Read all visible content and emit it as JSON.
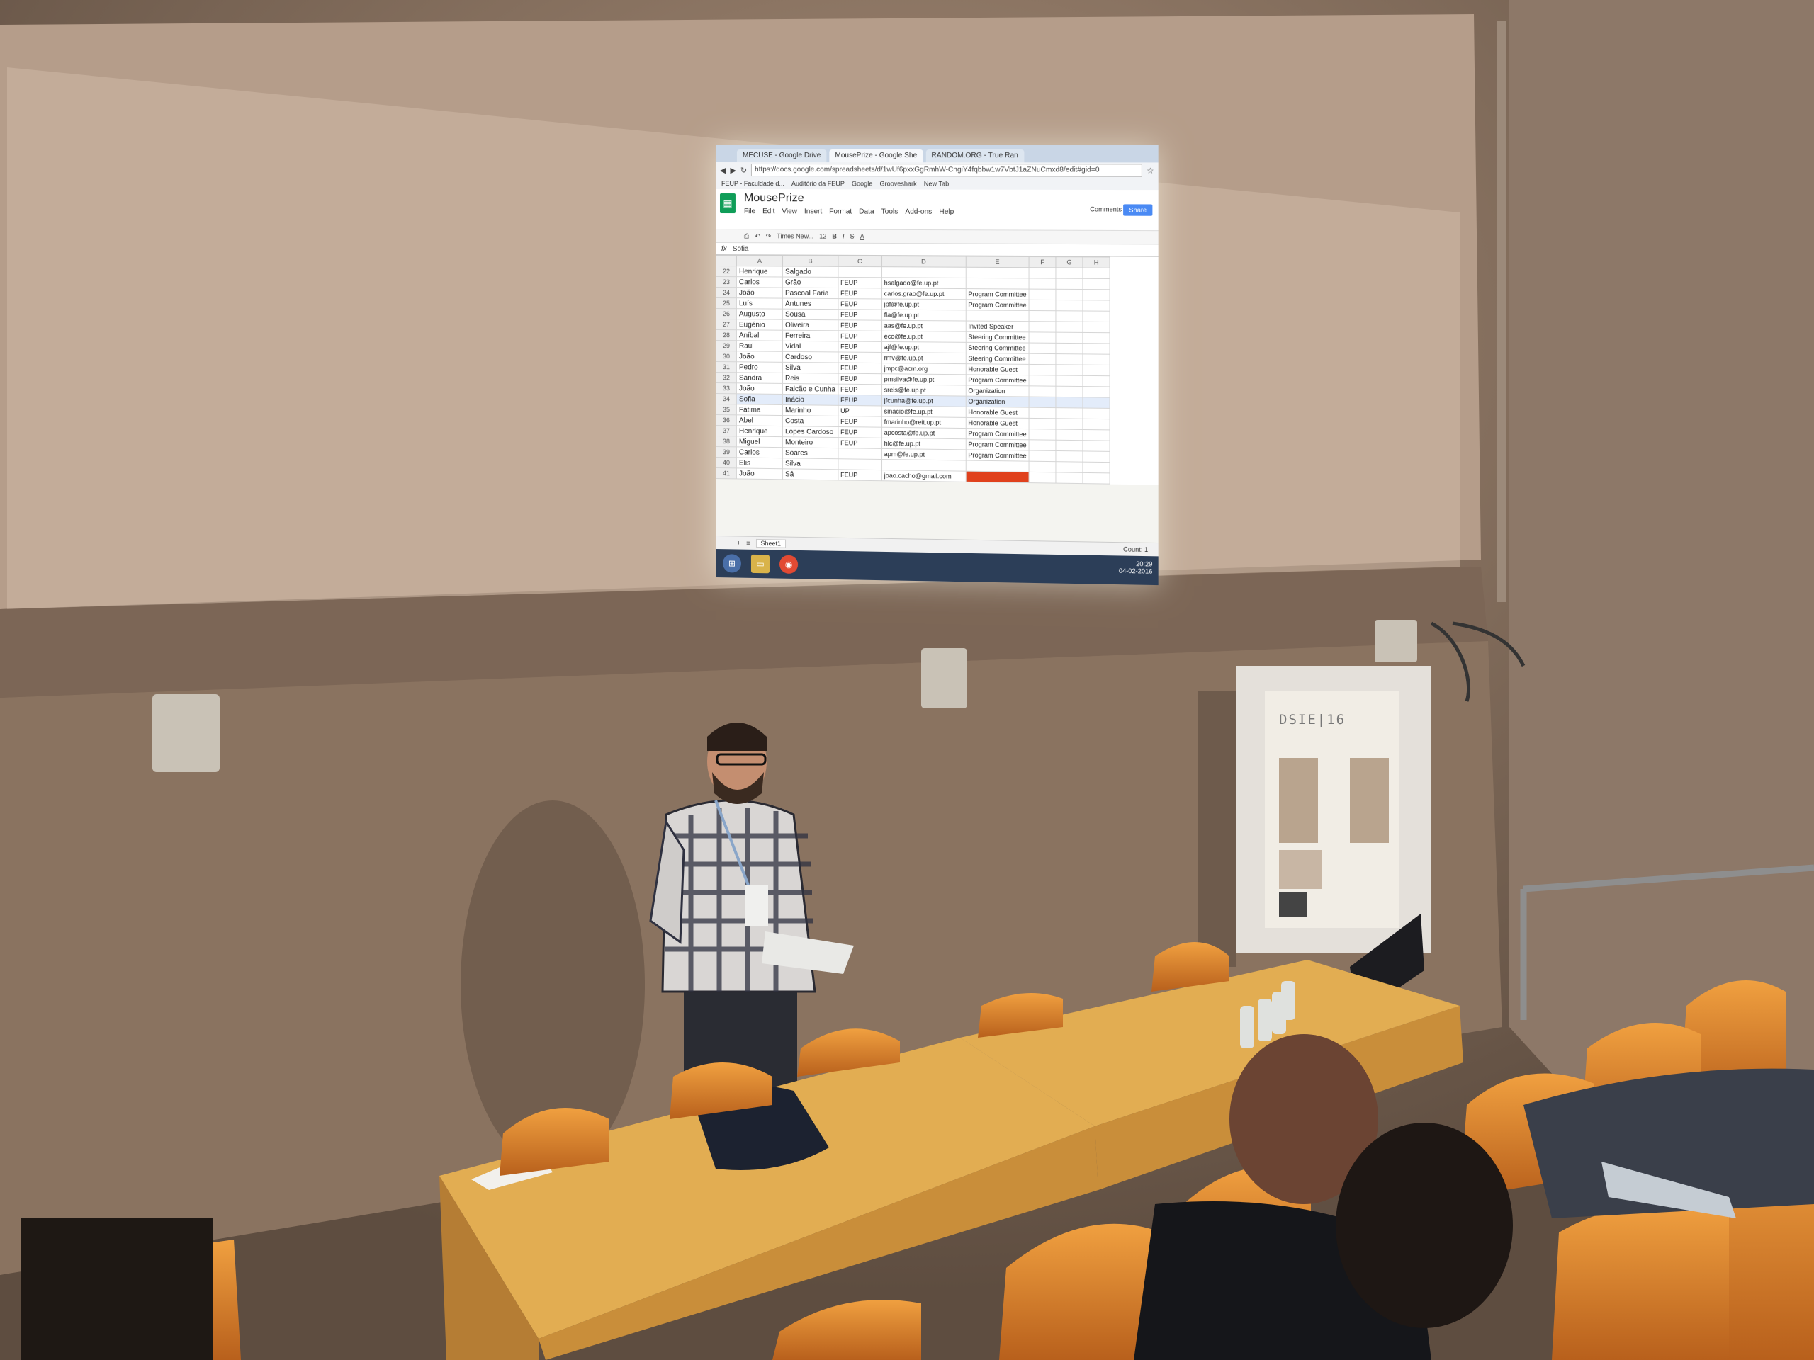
{
  "colors": {
    "wall": "#8c7563",
    "screen_glow": "#f4f4f0",
    "seat_orange": "#e88a2e",
    "desk_wood": "#d9a04a",
    "sheets_green": "#0f9d58",
    "highlight_red": "#e0411d"
  },
  "browser": {
    "tabs": [
      "MECUSE - Google Drive",
      "MousePrize - Google She",
      "RANDOM.ORG - True Ran"
    ],
    "url": "https://docs.google.com/spreadsheets/d/1wUf6pxxGgRmhW-CngiY4fqbbw1w7VbtJ1aZNuCmxd8/edit#gid=0",
    "bookmarks": [
      "FEUP - Faculdade d...",
      "Auditório da FEUP",
      "Google",
      "Grooveshark",
      "New Tab"
    ]
  },
  "sheet": {
    "title": "MousePrize",
    "menus": [
      "File",
      "Edit",
      "View",
      "Insert",
      "Format",
      "Data",
      "Tools",
      "Add-ons",
      "Help"
    ],
    "share_label": "Share",
    "comments_label": "Comments",
    "toolbar_font": "Times New...",
    "toolbar_size": "12",
    "formula_value": "Sofia",
    "columns": [
      "A",
      "B",
      "C",
      "D",
      "E",
      "F",
      "G",
      "H"
    ],
    "rows": [
      {
        "n": "22",
        "a": "Henrique",
        "b": "Salgado",
        "c": "",
        "d": "",
        "e": ""
      },
      {
        "n": "23",
        "a": "Carlos",
        "b": "Grão",
        "c": "FEUP",
        "d": "hsalgado@fe.up.pt",
        "e": ""
      },
      {
        "n": "24",
        "a": "João",
        "b": "Pascoal Faria",
        "c": "FEUP",
        "d": "carlos.grao@fe.up.pt",
        "e": "Program Committee"
      },
      {
        "n": "25",
        "a": "Luís",
        "b": "Antunes",
        "c": "FEUP",
        "d": "jpf@fe.up.pt",
        "e": "Program Committee"
      },
      {
        "n": "26",
        "a": "Augusto",
        "b": "Sousa",
        "c": "FEUP",
        "d": "fla@fe.up.pt",
        "e": ""
      },
      {
        "n": "27",
        "a": "Eugénio",
        "b": "Oliveira",
        "c": "FEUP",
        "d": "aas@fe.up.pt",
        "e": "Invited Speaker"
      },
      {
        "n": "28",
        "a": "Aníbal",
        "b": "Ferreira",
        "c": "FEUP",
        "d": "eco@fe.up.pt",
        "e": "Steering Committee"
      },
      {
        "n": "29",
        "a": "Raul",
        "b": "Vidal",
        "c": "FEUP",
        "d": "ajf@fe.up.pt",
        "e": "Steering Committee"
      },
      {
        "n": "30",
        "a": "João",
        "b": "Cardoso",
        "c": "FEUP",
        "d": "rmv@fe.up.pt",
        "e": "Steering Committee"
      },
      {
        "n": "31",
        "a": "Pedro",
        "b": "Silva",
        "c": "FEUP",
        "d": "jmpc@acm.org",
        "e": "Honorable Guest"
      },
      {
        "n": "32",
        "a": "Sandra",
        "b": "Reis",
        "c": "FEUP",
        "d": "pmsilva@fe.up.pt",
        "e": "Program Committee"
      },
      {
        "n": "33",
        "a": "João",
        "b": "Falcão e Cunha",
        "c": "FEUP",
        "d": "sreis@fe.up.pt",
        "e": "Organization"
      },
      {
        "n": "34",
        "a": "Sofia",
        "b": "Inácio",
        "c": "FEUP",
        "d": "jfcunha@fe.up.pt",
        "e": "Organization"
      },
      {
        "n": "35",
        "a": "Fátima",
        "b": "Marinho",
        "c": "UP",
        "d": "sinacio@fe.up.pt",
        "e": "Honorable Guest"
      },
      {
        "n": "36",
        "a": "Abel",
        "b": "Costa",
        "c": "FEUP",
        "d": "fmarinho@reit.up.pt",
        "e": "Honorable Guest"
      },
      {
        "n": "37",
        "a": "Henrique",
        "b": "Lopes Cardoso",
        "c": "FEUP",
        "d": "apcosta@fe.up.pt",
        "e": "Program Committee"
      },
      {
        "n": "38",
        "a": "Miguel",
        "b": "Monteiro",
        "c": "FEUP",
        "d": "hlc@fe.up.pt",
        "e": "Program Committee"
      },
      {
        "n": "39",
        "a": "Carlos",
        "b": "Soares",
        "c": "",
        "d": "apm@fe.up.pt",
        "e": "Program Committee"
      },
      {
        "n": "40",
        "a": "Elis",
        "b": "Silva",
        "c": "",
        "d": "",
        "e": ""
      },
      {
        "n": "41",
        "a": "João",
        "b": "Sá",
        "c": "FEUP",
        "d": "joao.cacho@gmail.com",
        "e": ""
      }
    ],
    "sheet_tab": "Sheet1",
    "count_label": "Count: 1"
  },
  "taskbar": {
    "clock_time": "20:29",
    "clock_date": "04-02-2016"
  },
  "poster": {
    "title": "DSIE|16"
  },
  "name_card": {
    "text": ""
  }
}
